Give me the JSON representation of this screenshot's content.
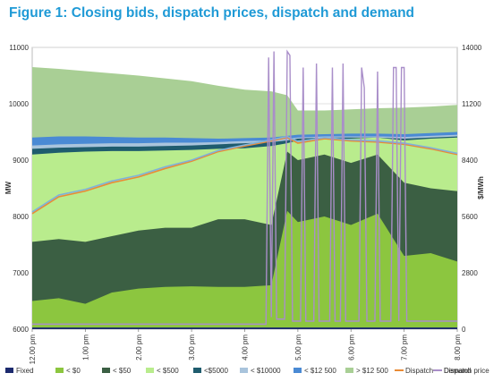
{
  "title": "Figure 1: Closing bids, dispatch prices, dispatch and demand",
  "chart_data": {
    "type": "area",
    "title": "Figure 1: Closing bids, dispatch prices, dispatch and demand",
    "ylabel": "MW",
    "y2label": "$/MWh",
    "ylim": [
      6000,
      11000
    ],
    "y2lim": [
      0,
      14000
    ],
    "yticks": [
      "6000",
      "7000",
      "8000",
      "9000",
      "10000",
      "11000"
    ],
    "y2ticks": [
      "0",
      "2800",
      "5600",
      "8400",
      "11200",
      "14000"
    ],
    "xticks": [
      "12.00 pm",
      "1.00 pm",
      "2.00 pm",
      "3.00 pm",
      "4.00 pm",
      "5.00 pm",
      "6.00 pm",
      "7.00 pm",
      "8.00 pm"
    ],
    "x": [
      0,
      0.5,
      1.0,
      1.5,
      2.0,
      2.5,
      3.0,
      3.5,
      4.0,
      4.5,
      4.8,
      5.0,
      5.5,
      6.0,
      6.5,
      7.0,
      7.5,
      8.0
    ],
    "grid": true,
    "legend_position": "bottom",
    "series": [
      {
        "name": "Fixed",
        "kind": "area",
        "color": "#1c2a6e",
        "values": [
          6030,
          6030,
          6030,
          6030,
          6030,
          6030,
          6030,
          6030,
          6030,
          6030,
          6030,
          6030,
          6030,
          6030,
          6030,
          6030,
          6030,
          6030
        ]
      },
      {
        "name": "< $0",
        "kind": "area",
        "color": "#8cc63f",
        "values": [
          6500,
          6550,
          6450,
          6650,
          6720,
          6750,
          6760,
          6750,
          6750,
          6780,
          8100,
          7900,
          8000,
          7850,
          8050,
          7300,
          7350,
          7200
        ]
      },
      {
        "name": "< $50",
        "kind": "area",
        "color": "#3b5f43",
        "values": [
          7550,
          7600,
          7550,
          7650,
          7750,
          7800,
          7800,
          7950,
          7950,
          7850,
          9150,
          9000,
          9100,
          8950,
          9100,
          8600,
          8500,
          8450
        ]
      },
      {
        "name": "< $500",
        "kind": "area",
        "color": "#b9ec8d",
        "values": [
          9100,
          9130,
          9150,
          9160,
          9160,
          9170,
          9180,
          9200,
          9210,
          9250,
          9300,
          9350,
          9380,
          9380,
          9400,
          9350,
          9380,
          9400
        ]
      },
      {
        "name": "<$5000",
        "kind": "area",
        "color": "#1f5c6e",
        "values": [
          9200,
          9220,
          9230,
          9240,
          9240,
          9250,
          9260,
          9280,
          9300,
          9320,
          9350,
          9380,
          9400,
          9400,
          9400,
          9380,
          9400,
          9420
        ]
      },
      {
        "name": "< $10000",
        "kind": "area",
        "color": "#a9c4dc",
        "values": [
          9260,
          9280,
          9290,
          9300,
          9300,
          9310,
          9310,
          9320,
          9340,
          9350,
          9380,
          9400,
          9420,
          9420,
          9420,
          9410,
          9430,
          9450
        ]
      },
      {
        "name": "< $12 500",
        "kind": "area",
        "color": "#4a8ad4",
        "values": [
          9400,
          9420,
          9420,
          9410,
          9400,
          9400,
          9390,
          9380,
          9390,
          9400,
          9430,
          9450,
          9460,
          9470,
          9470,
          9460,
          9480,
          9500
        ]
      },
      {
        "name": "> $12 500",
        "kind": "area",
        "color": "#a9cf95",
        "values": [
          10650,
          10620,
          10580,
          10540,
          10500,
          10450,
          10400,
          10320,
          10250,
          10220,
          10150,
          9880,
          9880,
          9900,
          9920,
          9930,
          9950,
          9980
        ]
      },
      {
        "name": "Dispatch",
        "kind": "line",
        "color": "#e98b36",
        "values": [
          8050,
          8350,
          8450,
          8600,
          8700,
          8850,
          8980,
          9150,
          9250,
          9340,
          9400,
          9300,
          9380,
          9340,
          9320,
          9280,
          9200,
          9100
        ]
      },
      {
        "name": "Demand",
        "kind": "line",
        "color": "#7fb2d9",
        "values": [
          8080,
          8380,
          8480,
          8630,
          8730,
          8880,
          9000,
          9170,
          9270,
          9360,
          9420,
          9330,
          9400,
          9360,
          9340,
          9300,
          9220,
          9120
        ]
      },
      {
        "name": "Dispatch price",
        "kind": "line",
        "axis": "right",
        "color": "#a98ec9",
        "x": [
          0,
          4.4,
          4.45,
          4.5,
          4.55,
          4.6,
          4.75,
          4.8,
          4.85,
          4.9,
          5.05,
          5.1,
          5.15,
          5.3,
          5.35,
          5.4,
          5.6,
          5.65,
          5.7,
          5.8,
          5.85,
          5.9,
          6.15,
          6.2,
          6.25,
          6.3,
          6.45,
          6.5,
          6.55,
          6.6,
          6.75,
          6.8,
          6.85,
          6.9,
          6.95,
          7.0,
          7.05,
          7.1,
          8.0
        ],
        "values": [
          250,
          250,
          13500,
          600,
          13800,
          500,
          500,
          13800,
          13600,
          400,
          400,
          13000,
          400,
          400,
          13200,
          400,
          400,
          13000,
          400,
          400,
          13200,
          400,
          400,
          13000,
          12000,
          400,
          400,
          12800,
          400,
          400,
          400,
          13000,
          13000,
          400,
          13000,
          13000,
          400,
          400,
          400
        ]
      }
    ]
  }
}
